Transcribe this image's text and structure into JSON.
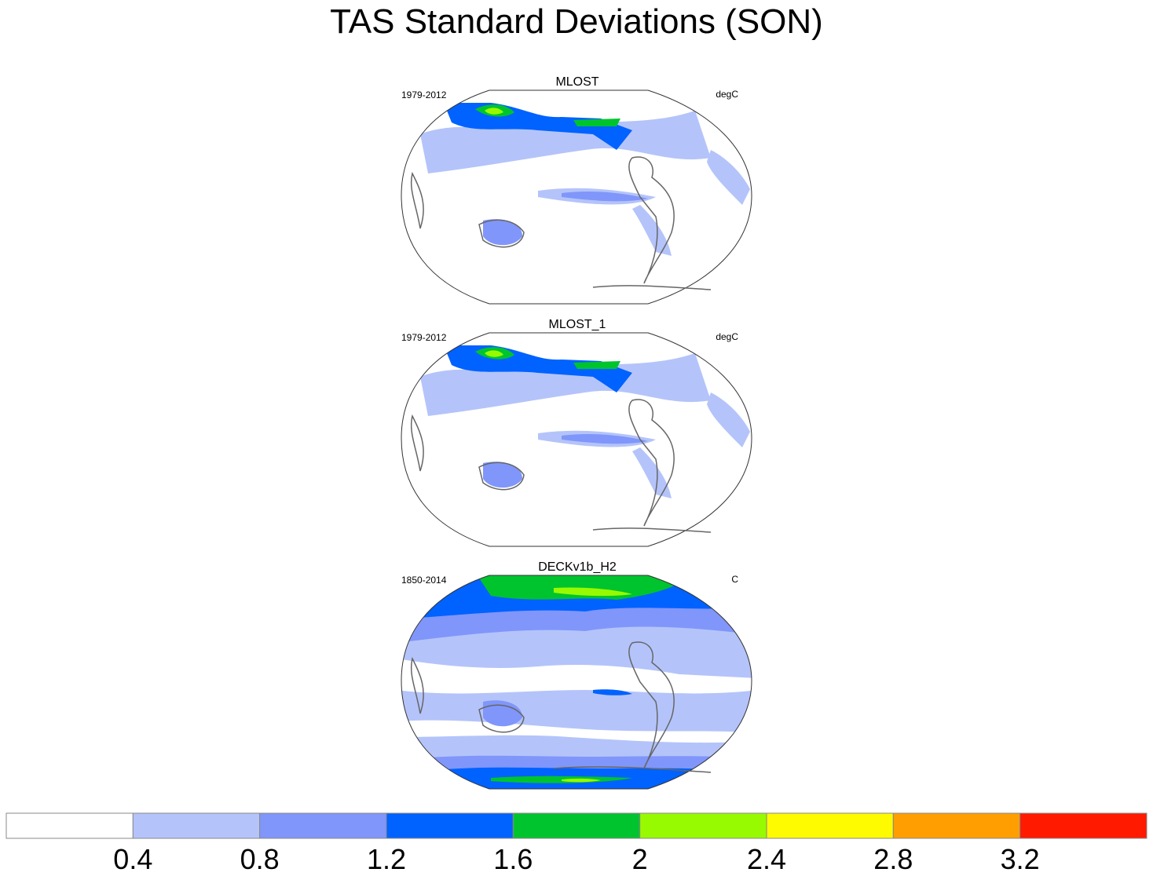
{
  "title": "TAS Standard Deviations (SON)",
  "panels": [
    {
      "name": "MLOST",
      "period": "1979-2012",
      "units": "degC"
    },
    {
      "name": "MLOST_1",
      "period": "1979-2012",
      "units": "degC"
    },
    {
      "name": "DECKv1b_H2",
      "period": "1850-2014",
      "units": "C"
    }
  ],
  "colorbar": {
    "labels": [
      "0.4",
      "0.8",
      "1.2",
      "1.6",
      "2",
      "2.4",
      "2.8",
      "3.2"
    ],
    "colors": [
      "#ffffff",
      "#b4c4fa",
      "#8096fa",
      "#0062ff",
      "#00c42e",
      "#98fa00",
      "#fefa00",
      "#ff9e00",
      "#ff1a00"
    ]
  }
}
